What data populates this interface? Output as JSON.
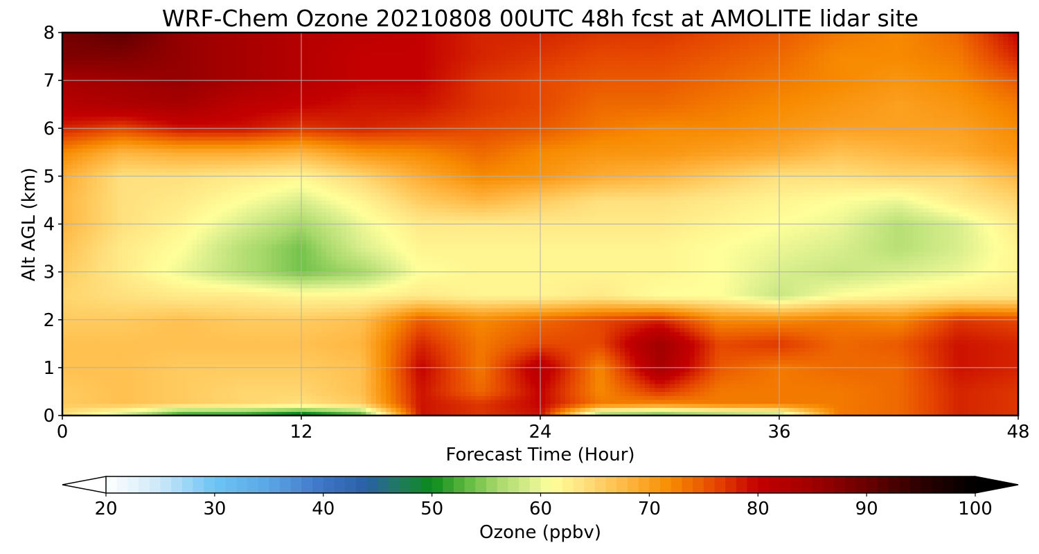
{
  "chart_data": {
    "type": "heatmap",
    "title": "WRF-Chem Ozone  20210808 00UTC 48h fcst at AMOLITE lidar site",
    "xlabel": "Forecast Time (Hour)",
    "ylabel": "Alt AGL (km)",
    "xlim": [
      0,
      48
    ],
    "ylim": [
      0,
      8
    ],
    "xticks": [
      0,
      12,
      24,
      36,
      48
    ],
    "yticks": [
      0,
      1,
      2,
      3,
      4,
      5,
      6,
      7,
      8
    ],
    "grid": true,
    "colorbar": {
      "label": "Ozone  (ppbv)",
      "min": 20,
      "max": 100,
      "ticks": [
        20,
        30,
        40,
        50,
        60,
        70,
        80,
        90,
        100
      ],
      "extend": "both",
      "stops": [
        {
          "v": 20,
          "c": "#ffffff"
        },
        {
          "v": 25,
          "c": "#cce8f8"
        },
        {
          "v": 30,
          "c": "#6cc4f4"
        },
        {
          "v": 35,
          "c": "#5aa6e6"
        },
        {
          "v": 40,
          "c": "#3f73c6"
        },
        {
          "v": 44,
          "c": "#2a5fa6"
        },
        {
          "v": 47,
          "c": "#1f7a5e"
        },
        {
          "v": 50,
          "c": "#0b8a1c"
        },
        {
          "v": 53,
          "c": "#5bb83c"
        },
        {
          "v": 56,
          "c": "#a6d86a"
        },
        {
          "v": 59,
          "c": "#d8ee8c"
        },
        {
          "v": 61,
          "c": "#ffff9a"
        },
        {
          "v": 64,
          "c": "#ffe07e"
        },
        {
          "v": 68,
          "c": "#ffb640"
        },
        {
          "v": 72,
          "c": "#f78a00"
        },
        {
          "v": 76,
          "c": "#e64800"
        },
        {
          "v": 80,
          "c": "#c40000"
        },
        {
          "v": 85,
          "c": "#a00000"
        },
        {
          "v": 90,
          "c": "#6a0000"
        },
        {
          "v": 95,
          "c": "#2c0000"
        },
        {
          "v": 100,
          "c": "#000000"
        }
      ]
    },
    "x": [
      0,
      3,
      6,
      9,
      12,
      15,
      18,
      21,
      24,
      27,
      30,
      33,
      36,
      39,
      42,
      45,
      48
    ],
    "y": [
      0,
      0.25,
      0.5,
      1,
      1.5,
      2,
      2.5,
      3,
      3.5,
      4,
      4.5,
      5,
      5.5,
      6,
      6.5,
      7,
      7.5,
      8
    ],
    "z": [
      [
        64,
        58,
        50,
        50,
        47,
        51,
        79,
        77,
        79,
        54,
        52,
        54,
        56,
        73,
        74,
        78,
        77
      ],
      [
        66,
        67,
        66,
        65,
        64,
        66,
        79,
        77,
        80,
        73,
        72,
        73,
        73,
        73,
        74,
        78,
        77
      ],
      [
        66,
        67,
        66,
        65,
        65,
        67,
        79,
        74,
        80,
        72,
        77,
        73,
        73,
        73,
        74,
        78,
        77
      ],
      [
        67,
        67,
        66,
        66,
        66,
        67,
        80,
        73,
        82,
        72,
        84,
        75,
        73,
        74,
        74,
        79,
        78
      ],
      [
        67,
        67,
        67,
        67,
        67,
        68,
        78,
        73,
        76,
        76,
        85,
        76,
        77,
        74,
        75,
        79,
        78
      ],
      [
        66,
        66,
        67,
        66,
        66,
        67,
        75,
        72,
        74,
        76,
        78,
        72,
        72,
        73,
        72,
        77,
        76
      ],
      [
        65,
        64,
        63,
        63,
        62,
        62,
        63,
        62,
        62,
        63,
        61,
        61,
        58,
        61,
        62,
        63,
        63
      ],
      [
        66,
        63,
        60,
        57,
        54,
        56,
        61,
        62,
        62,
        62,
        62,
        61,
        59,
        58,
        59,
        60,
        62
      ],
      [
        67,
        63,
        61,
        57,
        54,
        59,
        62,
        62,
        62,
        62,
        62,
        61,
        60,
        59,
        57,
        59,
        62
      ],
      [
        68,
        64,
        62,
        59,
        56,
        60,
        63,
        63,
        63,
        63,
        63,
        62,
        61,
        60,
        57,
        59,
        63
      ],
      [
        68,
        64,
        63,
        61,
        59,
        62,
        66,
        68,
        66,
        64,
        64,
        63,
        62,
        61,
        60,
        63,
        65
      ],
      [
        69,
        64,
        64,
        63,
        62,
        65,
        69,
        72,
        71,
        69,
        68,
        66,
        64,
        64,
        65,
        65,
        68
      ],
      [
        72,
        68,
        69,
        69,
        68,
        71,
        72,
        74,
        72,
        71,
        71,
        70,
        69,
        67,
        68,
        69,
        71
      ],
      [
        78,
        76,
        79,
        79,
        77,
        78,
        77,
        76,
        75,
        73,
        72,
        72,
        71,
        70,
        70,
        70,
        72
      ],
      [
        82,
        83,
        84,
        81,
        80,
        79,
        79,
        77,
        76,
        74,
        74,
        73,
        72,
        71,
        70,
        71,
        73
      ],
      [
        84,
        85,
        86,
        84,
        82,
        80,
        80,
        77,
        76,
        75,
        75,
        74,
        73,
        72,
        71,
        72,
        75
      ],
      [
        88,
        88,
        86,
        84,
        82,
        80,
        80,
        78,
        77,
        76,
        76,
        75,
        74,
        72,
        72,
        73,
        78
      ],
      [
        89,
        91,
        86,
        84,
        82,
        81,
        80,
        78,
        78,
        77,
        77,
        76,
        75,
        73,
        72,
        74,
        80
      ]
    ]
  }
}
